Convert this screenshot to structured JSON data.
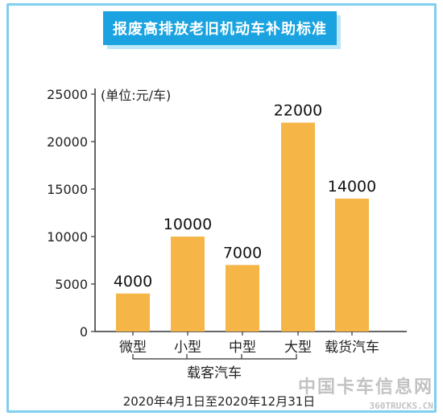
{
  "chart_data": {
    "type": "bar",
    "title": "报废高排放老旧机动车补助标准",
    "unit_label": "(单位:元/车)",
    "categories": [
      "微型",
      "小型",
      "中型",
      "大型",
      "载货汽车"
    ],
    "values": [
      4000,
      10000,
      7000,
      22000,
      14000
    ],
    "data_labels": [
      "4000",
      "10000",
      "7000",
      "22000",
      "14000"
    ],
    "y_ticks": [
      "0",
      "5000",
      "10000",
      "15000",
      "20000",
      "25000"
    ],
    "ylim": [
      0,
      25000
    ],
    "group_label": "载客汽车",
    "date_range": "2020年4月1日至2020年12月31日",
    "bar_color": "#f5b547",
    "grid": false
  },
  "watermark": {
    "text": "中国卡车信息网",
    "url": "360TRUCKS.CN"
  }
}
